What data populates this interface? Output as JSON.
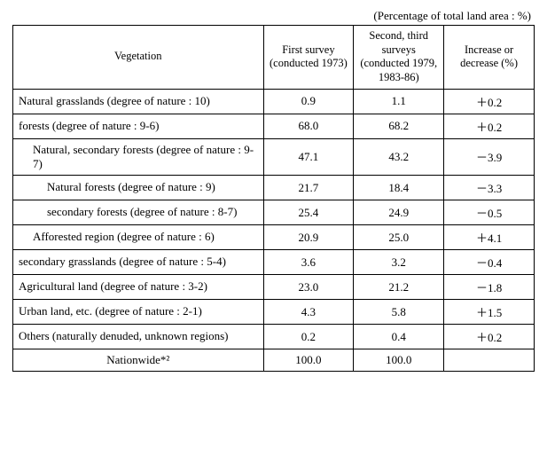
{
  "caption": "(Percentage of total land area : %)",
  "headers": {
    "vegetation": "Vegetation",
    "first": "First survey (conducted 1973)",
    "second": "Second, third surveys (conducted 1979, 1983-86)",
    "change": "Increase or decrease (%)"
  },
  "rows": [
    {
      "label": "Natural grasslands (degree of nature : 10)",
      "indent": 0,
      "first": "0.9",
      "second": "1.1",
      "change": "＋0.2"
    },
    {
      "label": "forests (degree of nature : 9-6)",
      "indent": 0,
      "first": "68.0",
      "second": "68.2",
      "change": "＋0.2"
    },
    {
      "label": "Natural, secondary forests (degree of nature : 9-7)",
      "indent": 1,
      "first": "47.1",
      "second": "43.2",
      "change": "－3.9"
    },
    {
      "label": "Natural forests (degree of nature : 9)",
      "indent": 2,
      "first": "21.7",
      "second": "18.4",
      "change": "－3.3"
    },
    {
      "label": "secondary forests (degree of nature : 8-7)",
      "indent": 2,
      "first": "25.4",
      "second": "24.9",
      "change": "－0.5"
    },
    {
      "label": "Afforested region (degree of nature : 6)",
      "indent": 1,
      "first": "20.9",
      "second": "25.0",
      "change": "＋4.1"
    },
    {
      "label": "secondary grasslands (degree of nature : 5-4)",
      "indent": 0,
      "first": "3.6",
      "second": "3.2",
      "change": "－0.4"
    },
    {
      "label": "Agricultural land (degree of nature : 3-2)",
      "indent": 0,
      "first": "23.0",
      "second": "21.2",
      "change": "－1.8"
    },
    {
      "label": "Urban land, etc. (degree of nature : 2-1)",
      "indent": 0,
      "first": "4.3",
      "second": "5.8",
      "change": "＋1.5"
    },
    {
      "label": "Others (naturally denuded, unknown regions)",
      "indent": 0,
      "first": "0.2",
      "second": "0.4",
      "change": "＋0.2"
    },
    {
      "label": "Nationwide*²",
      "indent": 0,
      "center": true,
      "first": "100.0",
      "second": "100.0",
      "change": ""
    }
  ]
}
